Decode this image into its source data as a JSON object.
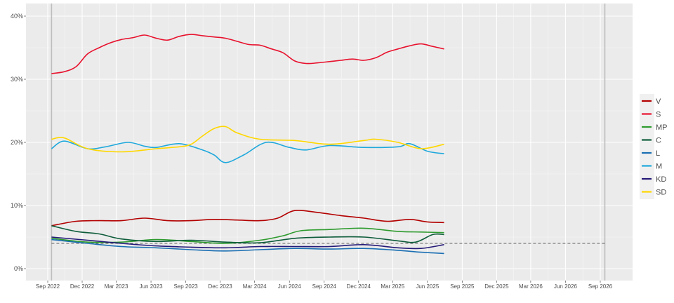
{
  "chart_data": {
    "type": "line",
    "title": "",
    "xlabel": "",
    "ylabel": "",
    "ylim": [
      -2,
      42
    ],
    "xlim": [
      "2022-07-01",
      "2026-10-15"
    ],
    "grid": true,
    "legend_position": "right",
    "y_ticks": [
      0,
      10,
      20,
      30,
      40
    ],
    "y_tick_labels": [
      "0%",
      "10%",
      "20%",
      "30%",
      "40%"
    ],
    "x_ticks": [
      "2022-09-01",
      "2022-12-01",
      "2023-03-01",
      "2023-06-01",
      "2023-09-01",
      "2023-12-01",
      "2024-03-01",
      "2024-06-01",
      "2024-09-01",
      "2024-12-01",
      "2025-03-01",
      "2025-06-01",
      "2025-09-01",
      "2025-12-01",
      "2026-03-01",
      "2026-06-01",
      "2026-09-01"
    ],
    "x_tick_labels": [
      "Sep 2022",
      "Dec 2022",
      "Mar 2023",
      "Jun 2023",
      "Sep 2023",
      "Dec 2023",
      "Mar 2024",
      "Jun 2024",
      "Sep 2024",
      "Dec 2024",
      "Mar 2025",
      "Jun 2025",
      "Sep 2025",
      "Dec 2025",
      "Mar 2026",
      "Jun 2026",
      "Sep 2026"
    ],
    "reference_line": 4,
    "election_dates": [
      "2022-09-11",
      "2026-09-13"
    ],
    "series": [
      {
        "name": "V",
        "color": "#b30000",
        "x": [
          "2022-09-11",
          "2022-11-15",
          "2023-01-15",
          "2023-03-15",
          "2023-05-15",
          "2023-07-15",
          "2023-09-15",
          "2023-11-15",
          "2024-01-15",
          "2024-03-15",
          "2024-05-01",
          "2024-06-15",
          "2024-08-15",
          "2024-10-15",
          "2024-12-15",
          "2025-02-15",
          "2025-04-15",
          "2025-06-01",
          "2025-07-15"
        ],
        "values": [
          6.8,
          7.5,
          7.6,
          7.6,
          8.0,
          7.6,
          7.6,
          7.8,
          7.7,
          7.6,
          8.0,
          9.2,
          8.9,
          8.4,
          8.0,
          7.5,
          7.8,
          7.4,
          7.3
        ]
      },
      {
        "name": "S",
        "color": "#e8112d",
        "x": [
          "2022-09-11",
          "2022-10-15",
          "2022-11-15",
          "2022-12-15",
          "2023-01-15",
          "2023-02-15",
          "2023-03-15",
          "2023-04-15",
          "2023-05-15",
          "2023-06-15",
          "2023-07-15",
          "2023-08-15",
          "2023-09-15",
          "2023-10-15",
          "2023-11-15",
          "2023-12-15",
          "2024-01-15",
          "2024-02-15",
          "2024-03-15",
          "2024-04-15",
          "2024-05-15",
          "2024-06-15",
          "2024-07-15",
          "2024-08-15",
          "2024-09-15",
          "2024-10-15",
          "2024-11-15",
          "2024-12-15",
          "2025-01-15",
          "2025-02-15",
          "2025-03-15",
          "2025-04-15",
          "2025-05-15",
          "2025-06-15",
          "2025-07-15"
        ],
        "values": [
          30.9,
          31.2,
          32.0,
          34.0,
          35.0,
          35.8,
          36.3,
          36.6,
          37.0,
          36.5,
          36.2,
          36.8,
          37.1,
          36.9,
          36.7,
          36.5,
          36.0,
          35.5,
          35.4,
          34.8,
          34.2,
          32.9,
          32.5,
          32.6,
          32.8,
          33.0,
          33.2,
          33.0,
          33.4,
          34.3,
          34.8,
          35.3,
          35.6,
          35.2,
          34.8
        ]
      },
      {
        "name": "MP",
        "color": "#2e9b2e",
        "x": [
          "2022-09-11",
          "2022-12-15",
          "2023-03-15",
          "2023-06-15",
          "2023-09-15",
          "2023-12-15",
          "2024-03-15",
          "2024-05-15",
          "2024-07-01",
          "2024-09-15",
          "2024-12-15",
          "2025-03-15",
          "2025-05-15",
          "2025-07-15"
        ],
        "values": [
          4.8,
          4.2,
          4.2,
          4.6,
          4.3,
          4.0,
          4.5,
          5.2,
          6.0,
          6.2,
          6.4,
          5.9,
          5.8,
          5.7
        ]
      },
      {
        "name": "C",
        "color": "#0d5c3a",
        "x": [
          "2022-09-11",
          "2022-11-15",
          "2023-01-15",
          "2023-03-15",
          "2023-06-15",
          "2023-09-15",
          "2023-12-15",
          "2024-03-15",
          "2024-06-15",
          "2024-09-15",
          "2024-12-15",
          "2025-03-15",
          "2025-05-01",
          "2025-06-15",
          "2025-07-15"
        ],
        "values": [
          6.8,
          5.9,
          5.5,
          4.7,
          4.3,
          4.5,
          4.2,
          4.1,
          4.8,
          5.0,
          5.0,
          4.4,
          4.2,
          5.4,
          5.4
        ]
      },
      {
        "name": "L",
        "color": "#1a6fb3",
        "x": [
          "2022-09-11",
          "2022-12-15",
          "2023-03-15",
          "2023-06-15",
          "2023-09-15",
          "2023-12-15",
          "2024-03-15",
          "2024-06-15",
          "2024-09-15",
          "2024-12-15",
          "2025-03-15",
          "2025-05-15",
          "2025-07-15"
        ],
        "values": [
          4.6,
          4.0,
          3.5,
          3.3,
          3.0,
          2.8,
          3.0,
          3.2,
          3.1,
          3.2,
          2.9,
          2.6,
          2.4
        ]
      },
      {
        "name": "M",
        "color": "#1fa8dc",
        "x": [
          "2022-09-11",
          "2022-10-15",
          "2022-12-15",
          "2023-02-01",
          "2023-04-01",
          "2023-05-15",
          "2023-06-15",
          "2023-08-15",
          "2023-10-15",
          "2023-11-15",
          "2023-12-15",
          "2024-02-01",
          "2024-04-01",
          "2024-06-01",
          "2024-07-15",
          "2024-09-15",
          "2024-12-15",
          "2025-03-15",
          "2025-04-15",
          "2025-06-01",
          "2025-07-15"
        ],
        "values": [
          19.0,
          20.2,
          19.0,
          19.3,
          20.0,
          19.4,
          19.2,
          19.8,
          18.8,
          18.0,
          16.8,
          18.0,
          20.0,
          19.2,
          18.8,
          19.5,
          19.2,
          19.3,
          19.8,
          18.6,
          18.2
        ]
      },
      {
        "name": "KD",
        "color": "#231977",
        "x": [
          "2022-09-11",
          "2022-12-15",
          "2023-03-15",
          "2023-06-15",
          "2023-09-15",
          "2023-12-15",
          "2024-03-15",
          "2024-06-15",
          "2024-09-15",
          "2024-12-15",
          "2025-03-15",
          "2025-05-15",
          "2025-07-15"
        ],
        "values": [
          5.0,
          4.5,
          4.0,
          3.6,
          3.4,
          3.3,
          3.5,
          3.5,
          3.5,
          3.8,
          3.3,
          3.2,
          3.8
        ]
      },
      {
        "name": "SD",
        "color": "#ffd700",
        "x": [
          "2022-09-11",
          "2022-10-15",
          "2022-12-15",
          "2023-03-15",
          "2023-06-15",
          "2023-08-15",
          "2023-09-15",
          "2023-10-15",
          "2023-11-15",
          "2023-12-15",
          "2024-01-15",
          "2024-03-15",
          "2024-06-15",
          "2024-09-15",
          "2024-12-15",
          "2025-01-15",
          "2025-03-15",
          "2025-05-15",
          "2025-07-15"
        ],
        "values": [
          20.5,
          20.7,
          19.0,
          18.5,
          19.0,
          19.3,
          19.7,
          21.0,
          22.2,
          22.5,
          21.5,
          20.5,
          20.3,
          19.7,
          20.3,
          20.5,
          20.0,
          19.0,
          19.7
        ]
      }
    ]
  }
}
